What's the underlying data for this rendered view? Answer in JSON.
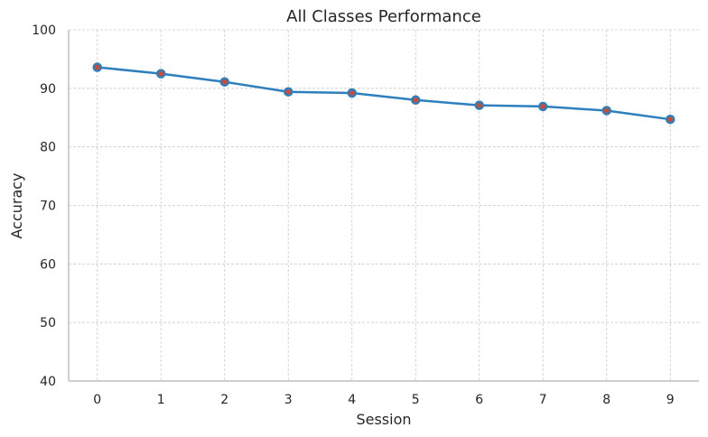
{
  "chart_data": {
    "type": "line",
    "title": "All Classes Performance",
    "xlabel": "Session",
    "ylabel": "Accuracy",
    "x": [
      0,
      1,
      2,
      3,
      4,
      5,
      6,
      7,
      8,
      9
    ],
    "series": [
      {
        "values": [
          93.6,
          92.5,
          91.1,
          89.4,
          89.2,
          88.0,
          87.1,
          86.9,
          86.2,
          84.7
        ]
      }
    ],
    "xticks": [
      0,
      1,
      2,
      3,
      4,
      5,
      6,
      7,
      8,
      9
    ],
    "yticks": [
      40,
      50,
      60,
      70,
      80,
      90,
      100
    ],
    "ylim": [
      40,
      100
    ],
    "xlim": [
      -0.45,
      9.45
    ],
    "grid": true,
    "colors": {
      "line": "#2e7fbd",
      "marker_face": "#d9472b",
      "grid": "#cccccc"
    }
  }
}
